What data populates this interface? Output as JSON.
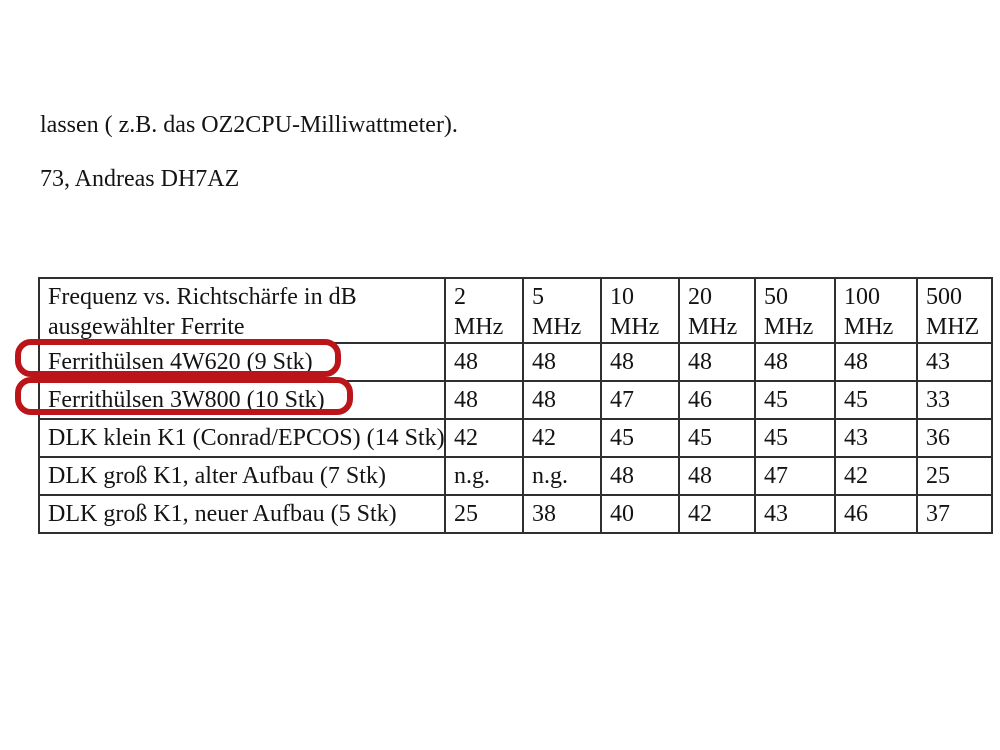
{
  "document": {
    "paragraphs": [
      "lassen ( z.B. das OZ2CPU-Milliwattmeter).",
      "73, Andreas DH7AZ"
    ]
  },
  "table": {
    "header": {
      "label": "Frequenz vs. Richtschärfe in dB\nausgewählter Ferrite",
      "columns": [
        "2\nMHz",
        "5\nMHz",
        "10\nMHz",
        "20\nMHz",
        "50\nMHz",
        "100\nMHz",
        "500\nMHZ"
      ]
    },
    "rows": [
      {
        "label": "Ferrithülsen 4W620 (9 Stk)",
        "values": [
          "48",
          "48",
          "48",
          "48",
          "48",
          "48",
          "43"
        ],
        "highlighted": true
      },
      {
        "label": "Ferrithülsen 3W800 (10 Stk)",
        "values": [
          "48",
          "48",
          "47",
          "46",
          "45",
          "45",
          "33"
        ],
        "highlighted": true
      },
      {
        "label": "DLK klein K1 (Conrad/EPCOS) (14 Stk)",
        "values": [
          "42",
          "42",
          "45",
          "45",
          "45",
          "43",
          "36"
        ],
        "highlighted": false
      },
      {
        "label": "DLK groß K1, alter Aufbau (7 Stk)",
        "values": [
          "n.g.",
          "n.g.",
          "48",
          "48",
          "47",
          "42",
          "25"
        ],
        "highlighted": false
      },
      {
        "label": "DLK groß K1, neuer Aufbau (5 Stk)",
        "values": [
          "25",
          "38",
          "40",
          "42",
          "43",
          "46",
          "37"
        ],
        "highlighted": false
      }
    ],
    "annotation_color": "#bb151a"
  },
  "chart_data": {
    "type": "table",
    "title": "Frequenz vs. Richtschärfe in dB ausgewählter Ferrite",
    "categories": [
      "2 MHz",
      "5 MHz",
      "10 MHz",
      "20 MHz",
      "50 MHz",
      "100 MHz",
      "500 MHZ"
    ],
    "series": [
      {
        "name": "Ferrithülsen 4W620 (9 Stk)",
        "values": [
          48,
          48,
          48,
          48,
          48,
          48,
          43
        ]
      },
      {
        "name": "Ferrithülsen 3W800 (10 Stk)",
        "values": [
          48,
          48,
          47,
          46,
          45,
          45,
          33
        ]
      },
      {
        "name": "DLK klein K1 (Conrad/EPCOS) (14 Stk)",
        "values": [
          42,
          42,
          45,
          45,
          45,
          43,
          36
        ]
      },
      {
        "name": "DLK groß K1, alter Aufbau (7 Stk)",
        "values": [
          null,
          null,
          48,
          48,
          47,
          42,
          25
        ]
      },
      {
        "name": "DLK groß K1, neuer Aufbau (5 Stk)",
        "values": [
          25,
          38,
          40,
          42,
          43,
          46,
          37
        ]
      }
    ],
    "missing_value_label": "n.g."
  }
}
